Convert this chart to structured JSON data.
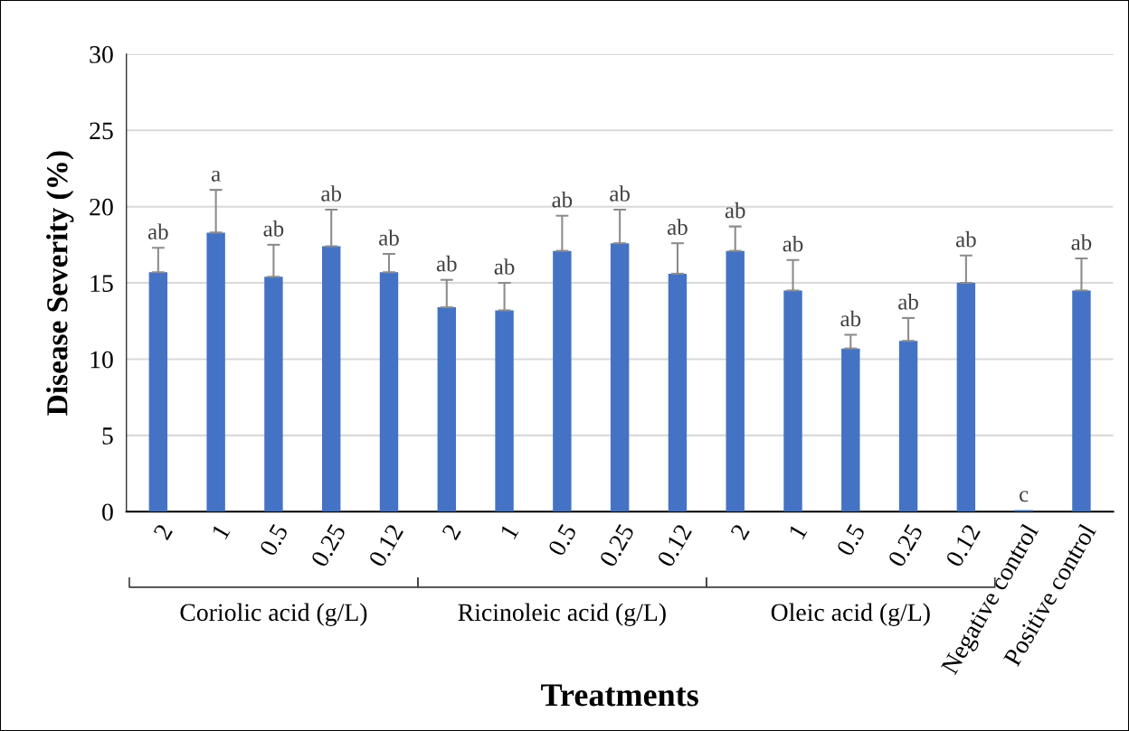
{
  "chart_data": {
    "type": "bar",
    "categories": [
      "2",
      "1",
      "0.5",
      "0.25",
      "0.12",
      "2",
      "1",
      "0.5",
      "0.25",
      "0.12",
      "2",
      "1",
      "0.5",
      "0.25",
      "0.12",
      "Negative control",
      "Positive control"
    ],
    "values": [
      15.7,
      18.3,
      15.4,
      17.4,
      15.7,
      13.4,
      13.2,
      17.1,
      17.6,
      15.6,
      17.1,
      14.5,
      10.7,
      11.2,
      15.0,
      0.1,
      14.5
    ],
    "errors": [
      1.6,
      2.8,
      2.1,
      2.4,
      1.2,
      1.8,
      1.8,
      2.3,
      2.2,
      2.0,
      1.6,
      2.0,
      0.9,
      1.5,
      1.8,
      null,
      2.1
    ],
    "value_labels": [
      "ab",
      "a",
      "ab",
      "ab",
      "ab",
      "ab",
      "ab",
      "ab",
      "ab",
      "ab",
      "ab",
      "ab",
      "ab",
      "ab",
      "ab",
      "c",
      "ab"
    ],
    "color": "#4472c4",
    "xlabel": "Treatments",
    "ylabel": "Disease Severity (%)",
    "ylim": [
      0,
      30
    ],
    "yticks": [
      0,
      5,
      10,
      15,
      20,
      25,
      30
    ],
    "grid": "y",
    "annotations": [
      "Coriolic acid (g/L)",
      "Ricinoleic acid (g/L)",
      "Oleic acid (g/L)"
    ]
  }
}
